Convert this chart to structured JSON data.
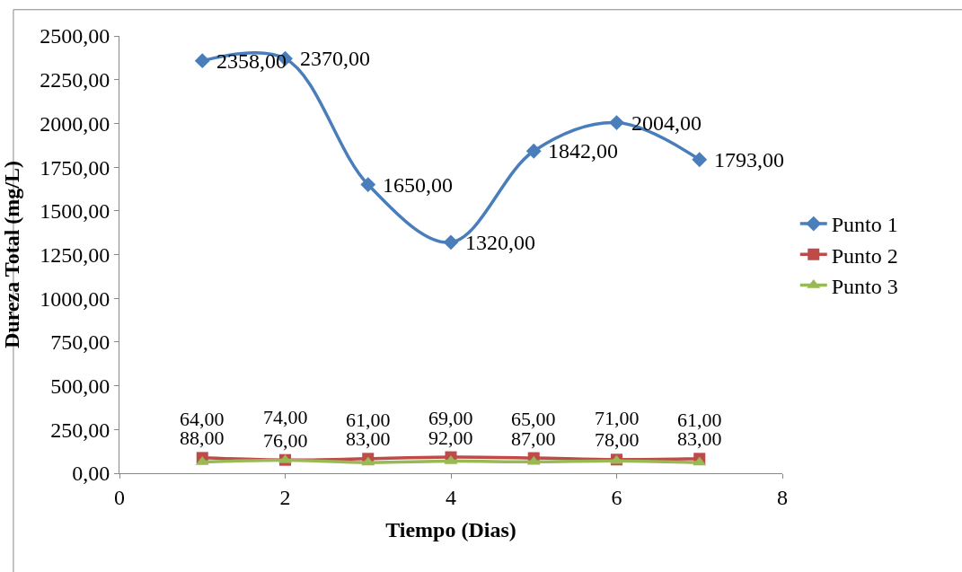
{
  "chart_data": {
    "type": "line",
    "xlabel": "Tiempo (Dias)",
    "ylabel": "Dureza Total (mg/L)",
    "x": [
      1,
      2,
      3,
      4,
      5,
      6,
      7
    ],
    "xlim": [
      0,
      8
    ],
    "xticks": [
      0,
      2,
      4,
      6,
      8
    ],
    "ylim": [
      0,
      2500
    ],
    "yticks": [
      {
        "value": 0,
        "label": "0,00"
      },
      {
        "value": 250,
        "label": "250,00"
      },
      {
        "value": 500,
        "label": "500,00"
      },
      {
        "value": 750,
        "label": "750,00"
      },
      {
        "value": 1000,
        "label": "1000,00"
      },
      {
        "value": 1250,
        "label": "1250,00"
      },
      {
        "value": 1500,
        "label": "1500,00"
      },
      {
        "value": 1750,
        "label": "1750,00"
      },
      {
        "value": 2000,
        "label": "2000,00"
      },
      {
        "value": 2250,
        "label": "2250,00"
      },
      {
        "value": 2500,
        "label": "2500,00"
      }
    ],
    "series": [
      {
        "name": "Punto 1",
        "color": "#4a7ebb",
        "marker": "diamond",
        "values": [
          2358,
          2370,
          1650,
          1320,
          1842,
          2004,
          1793
        ],
        "value_labels": [
          "2358,00",
          "2370,00",
          "1650,00",
          "1320,00",
          "1842,00",
          "2004,00",
          "1793,00"
        ]
      },
      {
        "name": "Punto 2",
        "color": "#be4b48",
        "marker": "square",
        "values": [
          88,
          76,
          83,
          92,
          87,
          78,
          83
        ],
        "value_labels": [
          "88,00",
          "76,00",
          "83,00",
          "92,00",
          "87,00",
          "78,00",
          "83,00"
        ]
      },
      {
        "name": "Punto 3",
        "color": "#98b954",
        "marker": "triangle",
        "values": [
          64,
          74,
          61,
          69,
          65,
          71,
          61
        ],
        "value_labels": [
          "64,00",
          "74,00",
          "61,00",
          "69,00",
          "65,00",
          "71,00",
          "61,00"
        ]
      }
    ],
    "legend": "right"
  }
}
